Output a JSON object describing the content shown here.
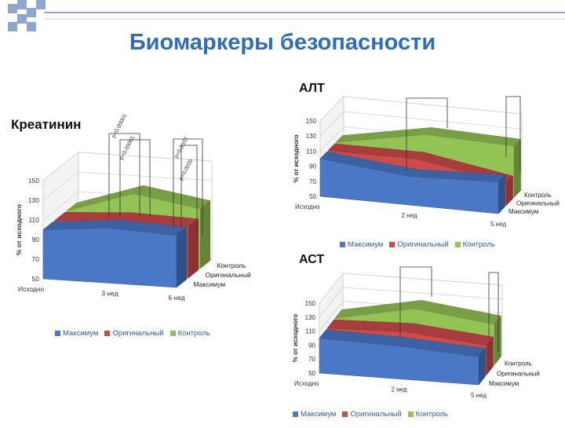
{
  "slide_title": "Биомаркеры безопасности",
  "colors": {
    "blue": "#4a78c7",
    "red": "#cc4b4b",
    "green": "#93c255",
    "title": "#2f6db5",
    "deco": "#8fa6cf"
  },
  "chart_data": [
    {
      "id": "creat",
      "type": "area",
      "title": "Креатинин",
      "ylabel": "% от исходного",
      "ylim": [
        50,
        150
      ],
      "yticks": [
        50,
        70,
        90,
        110,
        130,
        150
      ],
      "categories": [
        "Исходно",
        "3 нед",
        "6 нед"
      ],
      "series": [
        {
          "name": "Максимум",
          "color": "#4a78c7",
          "values": [
            100,
            106,
            103
          ]
        },
        {
          "name": "Оригинальный",
          "color": "#cc4b4b",
          "values": [
            100,
            104,
            102
          ]
        },
        {
          "name": "Контроль",
          "color": "#93c255",
          "values": [
            100,
            122,
            111
          ]
        }
      ],
      "annotations": [
        "p=0.00001",
        "p=0.00001",
        "p=0.0037",
        "p=0.0039"
      ],
      "legend": "bottom",
      "grid": true
    },
    {
      "id": "alt",
      "type": "area",
      "title": "АЛТ",
      "ylabel": "% от исходного",
      "ylim": [
        50,
        150
      ],
      "yticks": [
        50,
        70,
        90,
        110,
        130,
        150
      ],
      "categories": [
        "Исходно",
        "2 нед",
        "5 нед"
      ],
      "series": [
        {
          "name": "Максимум",
          "color": "#4a78c7",
          "values": [
            100,
            88,
            92
          ]
        },
        {
          "name": "Оригинальный",
          "color": "#cc4b4b",
          "values": [
            100,
            100,
            80
          ]
        },
        {
          "name": "Контроль",
          "color": "#93c255",
          "values": [
            100,
            122,
            118
          ]
        }
      ],
      "legend": "bottom",
      "grid": true
    },
    {
      "id": "ast",
      "type": "area",
      "title": "АСТ",
      "ylabel": "% от исходного",
      "ylim": [
        50,
        150
      ],
      "yticks": [
        50,
        70,
        90,
        110,
        130,
        150
      ],
      "categories": [
        "Исходно",
        "2 нед",
        "5 нед"
      ],
      "series": [
        {
          "name": "Максимум",
          "color": "#4a78c7",
          "values": [
            100,
            97,
            90
          ]
        },
        {
          "name": "Оригинальный",
          "color": "#cc4b4b",
          "values": [
            100,
            103,
            92
          ]
        },
        {
          "name": "Контроль",
          "color": "#93c255",
          "values": [
            100,
            122,
            108
          ]
        }
      ],
      "legend": "bottom",
      "grid": true
    }
  ]
}
